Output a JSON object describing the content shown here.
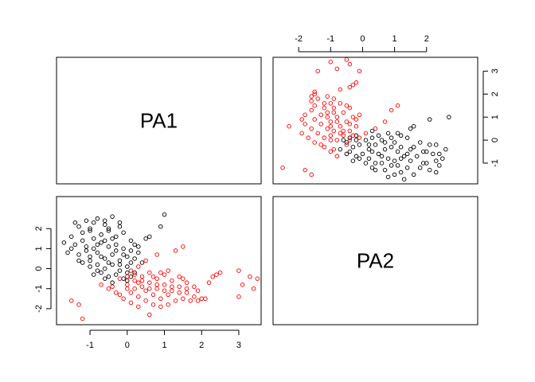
{
  "chart_data": {
    "type": "scatter",
    "layout": "pairs-matrix",
    "variables": [
      "PA1",
      "PA2"
    ],
    "colors": {
      "group1": "#000000",
      "group2": "#ff0000"
    },
    "axes": {
      "PA1": {
        "ticks": [
          -1,
          0,
          1,
          2,
          3
        ],
        "range": [
          -1.9,
          3.6
        ]
      },
      "PA2": {
        "ticks": [
          -2,
          -1,
          0,
          1,
          2,
          3
        ],
        "range": [
          -2.8,
          3.6
        ]
      }
    },
    "tick_labels": {
      "PA1": [
        "-1",
        "0",
        "1",
        "2",
        "3"
      ],
      "PA2": [
        "-2",
        "-1",
        "0",
        "1",
        "2",
        "3"
      ]
    },
    "series": [
      {
        "color": "#000000",
        "pa1_center": [
          -0.55,
          -0.35
        ],
        "pa2_center": [
          0.9,
          -0.65
        ],
        "points": [
          [
            -1.3,
            2.1
          ],
          [
            -1.1,
            2.4
          ],
          [
            -1.0,
            1.9
          ],
          [
            -0.8,
            2.5
          ],
          [
            -0.6,
            2.2
          ],
          [
            -0.4,
            2.6
          ],
          [
            -0.2,
            2.3
          ],
          [
            -1.5,
            1.6
          ],
          [
            -1.2,
            1.8
          ],
          [
            -0.9,
            1.5
          ],
          [
            -0.7,
            1.7
          ],
          [
            -0.5,
            1.9
          ],
          [
            -0.3,
            1.6
          ],
          [
            -0.1,
            1.8
          ],
          [
            0.1,
            1.4
          ],
          [
            -1.4,
            1.2
          ],
          [
            -1.1,
            1.1
          ],
          [
            -0.9,
            1.0
          ],
          [
            -0.7,
            1.3
          ],
          [
            -0.5,
            1.1
          ],
          [
            -0.3,
            1.2
          ],
          [
            -0.1,
            1.0
          ],
          [
            0.1,
            0.9
          ],
          [
            0.3,
            1.1
          ],
          [
            -1.6,
            0.8
          ],
          [
            -1.3,
            0.7
          ],
          [
            -1.0,
            0.6
          ],
          [
            -0.8,
            0.8
          ],
          [
            -0.6,
            0.5
          ],
          [
            -0.4,
            0.7
          ],
          [
            -0.2,
            0.4
          ],
          [
            0.0,
            0.6
          ],
          [
            0.2,
            0.5
          ],
          [
            0.4,
            0.3
          ],
          [
            -1.2,
            0.3
          ],
          [
            -1.0,
            0.1
          ],
          [
            -0.8,
            0.2
          ],
          [
            -0.6,
            0.0
          ],
          [
            -0.4,
            0.2
          ],
          [
            -0.2,
            -0.1
          ],
          [
            0.0,
            0.1
          ],
          [
            0.2,
            -0.2
          ],
          [
            -0.9,
            -0.3
          ],
          [
            -0.7,
            -0.2
          ],
          [
            -0.5,
            -0.4
          ],
          [
            -0.3,
            -0.3
          ],
          [
            -0.1,
            -0.5
          ],
          [
            0.1,
            -0.4
          ],
          [
            -1.0,
            2.0
          ],
          [
            -0.2,
            2.1
          ],
          [
            1.0,
            2.7
          ],
          [
            0.5,
            1.5
          ],
          [
            0.3,
            0.8
          ],
          [
            -1.3,
            0.4
          ],
          [
            -0.6,
            -0.5
          ],
          [
            -0.4,
            -0.7
          ],
          [
            0.0,
            -0.6
          ],
          [
            -0.8,
            1.2
          ],
          [
            -0.6,
            1.4
          ],
          [
            -1.1,
            0.9
          ],
          [
            -0.3,
            0.9
          ],
          [
            0.1,
            0.3
          ],
          [
            -0.5,
            0.3
          ],
          [
            -0.7,
            0.6
          ],
          [
            -1.4,
            2.3
          ],
          [
            -0.9,
            2.3
          ],
          [
            -0.5,
            2.0
          ],
          [
            -1.2,
            1.4
          ],
          [
            0.6,
            1.6
          ],
          [
            0.9,
            2.1
          ],
          [
            -0.2,
            0.2
          ],
          [
            0.0,
            -0.2
          ],
          [
            -0.8,
            -0.1
          ],
          [
            -1.0,
            0.4
          ],
          [
            -1.5,
            1.0
          ],
          [
            -0.4,
            1.5
          ],
          [
            0.2,
            1.2
          ],
          [
            -0.6,
            2.4
          ],
          [
            -1.7,
            1.3
          ],
          [
            -0.1,
            0.7
          ]
        ]
      },
      {
        "color": "#ff0000",
        "pa1_center": [
          0.75,
          -0.45
        ],
        "pa2_center": [
          -0.75,
          1.0
        ],
        "points": [
          [
            0.0,
            -0.8
          ],
          [
            0.2,
            -0.6
          ],
          [
            0.4,
            -0.9
          ],
          [
            0.6,
            -0.7
          ],
          [
            0.8,
            -1.0
          ],
          [
            1.0,
            -0.8
          ],
          [
            1.2,
            -1.1
          ],
          [
            1.4,
            -0.9
          ],
          [
            1.6,
            -1.2
          ],
          [
            1.8,
            -1.4
          ],
          [
            2.0,
            -1.5
          ],
          [
            -0.2,
            -0.5
          ],
          [
            0.1,
            -1.2
          ],
          [
            0.3,
            -1.4
          ],
          [
            0.5,
            -1.1
          ],
          [
            0.7,
            -1.3
          ],
          [
            0.9,
            -1.5
          ],
          [
            1.1,
            -1.3
          ],
          [
            1.3,
            -1.6
          ],
          [
            1.5,
            -1.5
          ],
          [
            1.7,
            -1.6
          ],
          [
            0.0,
            -1.0
          ],
          [
            0.2,
            -0.3
          ],
          [
            0.4,
            -0.4
          ],
          [
            0.6,
            -0.2
          ],
          [
            0.8,
            -0.5
          ],
          [
            1.0,
            -0.3
          ],
          [
            1.2,
            -0.6
          ],
          [
            1.4,
            -0.4
          ],
          [
            1.6,
            -0.7
          ],
          [
            -0.4,
            -0.9
          ],
          [
            -0.3,
            -1.2
          ],
          [
            -0.1,
            -1.5
          ],
          [
            0.1,
            -1.7
          ],
          [
            0.3,
            -1.9
          ],
          [
            0.6,
            -2.3
          ],
          [
            0.9,
            -1.9
          ],
          [
            1.1,
            -1.8
          ],
          [
            1.4,
            -1.2
          ],
          [
            1.9,
            -1.1
          ],
          [
            2.2,
            -0.7
          ],
          [
            2.4,
            -0.3
          ],
          [
            3.0,
            -0.1
          ],
          [
            3.1,
            -0.8
          ],
          [
            3.3,
            -0.4
          ],
          [
            3.4,
            -1.0
          ],
          [
            3.5,
            -0.5
          ],
          [
            3.0,
            -1.4
          ],
          [
            1.3,
            0.9
          ],
          [
            1.5,
            1.1
          ],
          [
            0.8,
            0.7
          ],
          [
            0.5,
            0.4
          ],
          [
            0.3,
            0.1
          ],
          [
            -1.5,
            -1.6
          ],
          [
            -1.3,
            -1.8
          ],
          [
            -1.2,
            -2.5
          ],
          [
            -0.7,
            -0.8
          ],
          [
            -0.5,
            -1.0
          ],
          [
            0.0,
            -0.4
          ],
          [
            0.2,
            -1.0
          ],
          [
            0.4,
            -0.6
          ],
          [
            0.6,
            -1.0
          ],
          [
            0.8,
            -0.8
          ],
          [
            1.0,
            -1.1
          ],
          [
            1.2,
            -0.9
          ],
          [
            1.6,
            -1.0
          ],
          [
            1.8,
            -0.9
          ],
          [
            2.3,
            -0.4
          ],
          [
            2.5,
            -0.2
          ],
          [
            1.9,
            -1.6
          ],
          [
            2.1,
            -1.5
          ],
          [
            0.1,
            -0.1
          ],
          [
            0.7,
            -0.4
          ],
          [
            1.1,
            -0.1
          ],
          [
            0.9,
            -0.2
          ],
          [
            0.3,
            -0.7
          ],
          [
            -0.2,
            -1.3
          ],
          [
            0.5,
            -1.6
          ],
          [
            0.7,
            -1.8
          ],
          [
            1.5,
            -0.5
          ]
        ]
      }
    ],
    "diagonal_labels": [
      "PA1",
      "PA2"
    ]
  }
}
